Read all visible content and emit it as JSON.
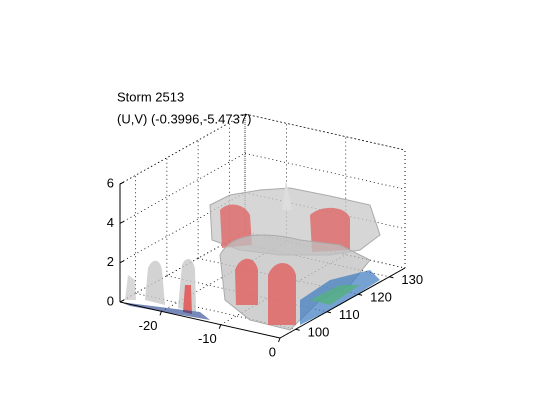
{
  "chart_data": {
    "type": "isosurface",
    "title": "Storm 2513",
    "subtitle": "(U,V) (-0.3996,-5.4737)",
    "xlim": [
      -27,
      0
    ],
    "xticks": [
      -20,
      -10,
      0
    ],
    "ylim": [
      95,
      135
    ],
    "yticks": [
      100,
      110,
      120,
      130
    ],
    "zlim": [
      0,
      6
    ],
    "zticks": [
      0,
      2,
      4,
      6
    ],
    "grid": true
  }
}
